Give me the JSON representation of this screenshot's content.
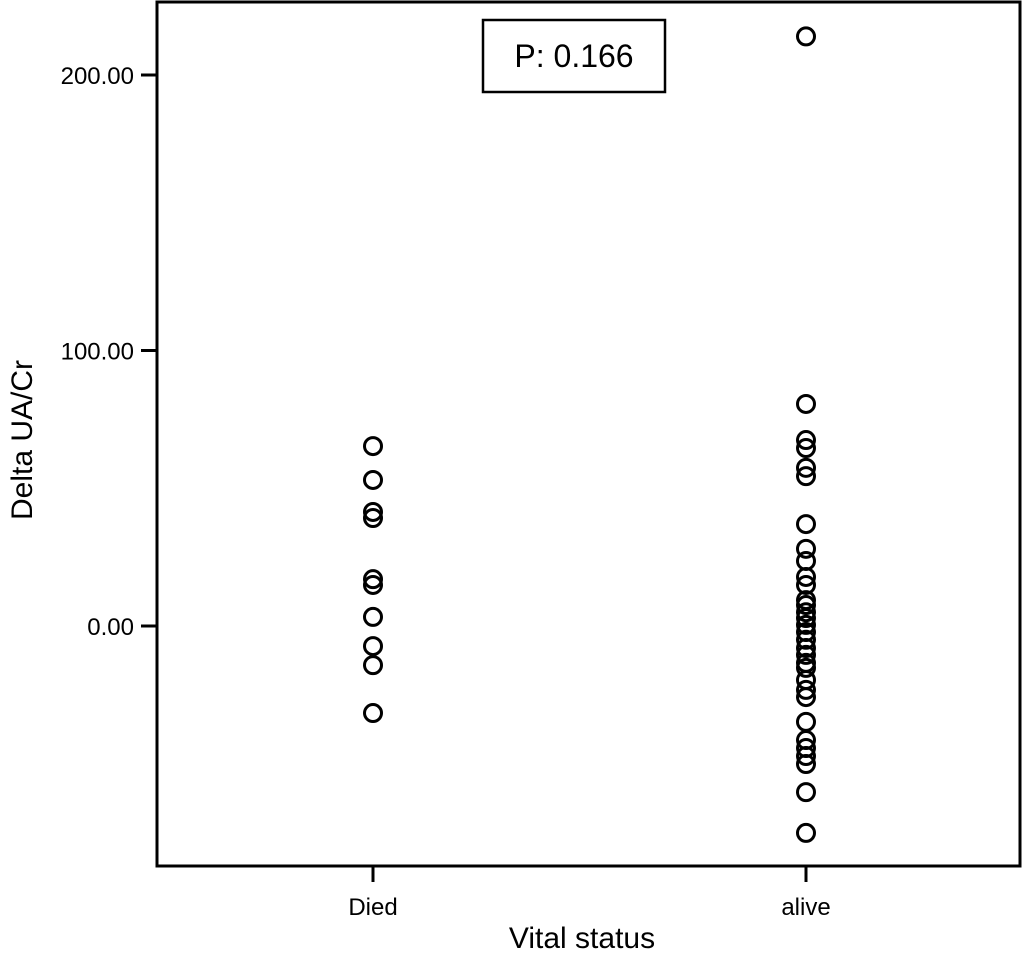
{
  "chart_data": {
    "type": "scatter",
    "title": "",
    "xlabel": "Vital status",
    "ylabel": "Delta UA/Cr",
    "categories": [
      "Died",
      "alive"
    ],
    "yticks": [
      "0.00",
      "100.00",
      "200.00"
    ],
    "ytick_values": [
      0,
      100,
      200
    ],
    "ylim": [
      -87,
      226
    ],
    "grid": false,
    "annotation": "P: 0.166",
    "marker": "open-circle",
    "color": "#000000",
    "series": [
      {
        "category": "Died",
        "values": [
          65.3,
          53,
          41.4,
          39.2,
          17,
          14.9,
          3.3,
          -7.3,
          -14.2,
          -31.6
        ]
      },
      {
        "category": "alive",
        "values": [
          214,
          80.6,
          67.5,
          64.6,
          57.4,
          54.4,
          37,
          28,
          23.6,
          17.8,
          14.9,
          9.4,
          7.6,
          5,
          2.9,
          0.4,
          -2.2,
          -5,
          -8,
          -10.5,
          -13.4,
          -15.2,
          -19.6,
          -23.2,
          -25.8,
          -34.8,
          -41.4,
          -44.3,
          -47.2,
          -50.1,
          -60.3,
          -75.1
        ]
      }
    ]
  }
}
